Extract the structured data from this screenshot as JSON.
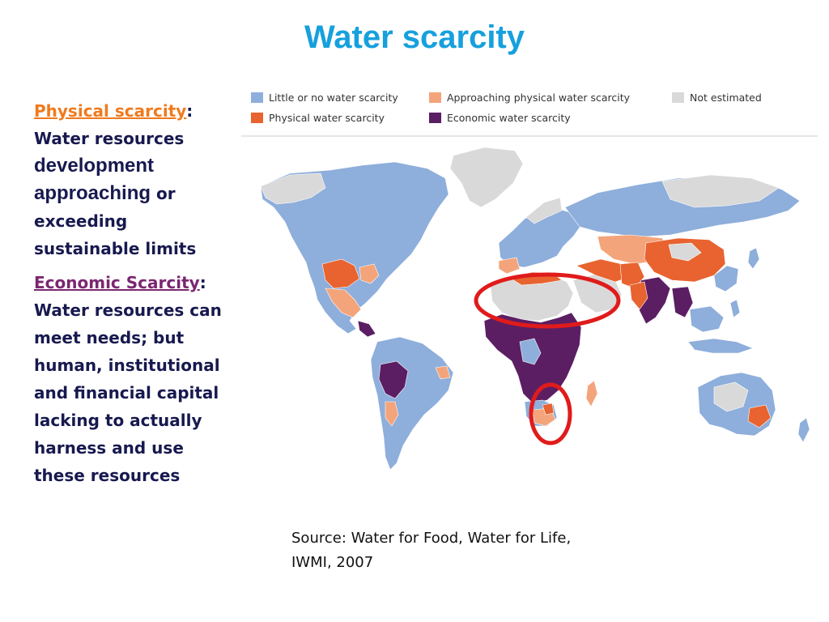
{
  "title": "Water scarcity",
  "left": {
    "physical_heading": "Physical scarcity",
    "physical_colon": ":",
    "physical_line1": "Water resources",
    "physical_line2": "development",
    "physical_line3a": "approaching",
    "physical_line3b": " or",
    "physical_line4": "exceeding",
    "physical_line5": "sustainable limits",
    "economic_heading": "Economic Scarcity",
    "economic_colon": ":",
    "economic_line1": "Water resources can",
    "economic_line2": "meet needs; but",
    "economic_line3": "human, institutional",
    "economic_line4": "and financial capital",
    "economic_line5": "lacking to actually",
    "economic_line6": "harness and use",
    "economic_line7": "these resources"
  },
  "legend": [
    {
      "label": "Little or no water scarcity",
      "color": "#8eaedb"
    },
    {
      "label": "Approaching physical water scarcity",
      "color": "#f4a47a"
    },
    {
      "label": "Not estimated",
      "color": "#d9d9d9"
    },
    {
      "label": "Physical water scarcity",
      "color": "#e8632f"
    },
    {
      "label": "Economic water scarcity",
      "color": "#5b1e63"
    }
  ],
  "colors": {
    "title": "#16a0dd",
    "highlight_circle": "#e01b1b",
    "ocean": "#ffffff"
  },
  "source": {
    "line1": "Source: Water for Food, Water for Life,",
    "line2": "IWMI, 2007"
  }
}
